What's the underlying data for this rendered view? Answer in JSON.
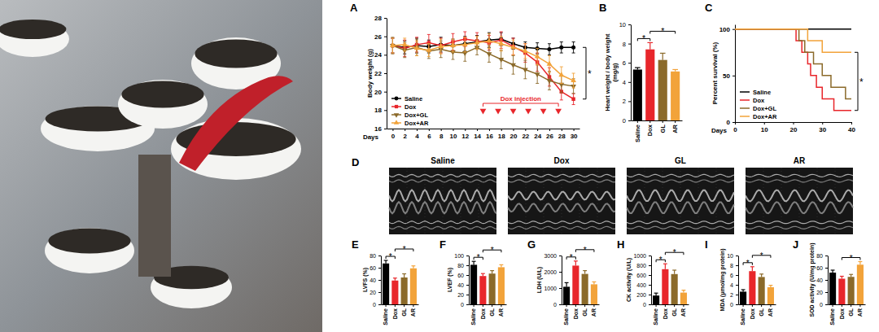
{
  "chart_data": [
    {
      "type": "line",
      "title": "A",
      "x_label": "Days",
      "y_label": "Body weight (g)",
      "x": [
        0,
        2,
        4,
        6,
        8,
        10,
        12,
        14,
        16,
        18,
        20,
        22,
        24,
        26,
        28,
        30
      ],
      "xlim": [
        -1,
        31
      ],
      "xticks": [
        0,
        2,
        4,
        6,
        8,
        10,
        12,
        14,
        16,
        18,
        20,
        22,
        24,
        26,
        28,
        30
      ],
      "ylim": [
        16,
        28
      ],
      "yticks": [
        16,
        18,
        20,
        22,
        24,
        26,
        28
      ],
      "legend": "lower left",
      "series": [
        {
          "name": "Saline",
          "color": "#000000",
          "marker": "circle",
          "values": [
            25.0,
            24.8,
            25.0,
            24.9,
            25.1,
            25.0,
            25.2,
            25.4,
            25.6,
            25.7,
            25.2,
            24.8,
            24.7,
            24.6,
            24.8,
            24.8
          ],
          "errors": [
            0.8,
            0.7,
            0.8,
            0.7,
            0.8,
            0.7,
            0.8,
            0.7,
            0.8,
            0.7,
            0.6,
            0.6,
            0.6,
            0.6,
            0.6,
            0.6
          ]
        },
        {
          "name": "Dox",
          "color": "#e8262b",
          "marker": "square",
          "values": [
            25.0,
            24.7,
            25.1,
            25.3,
            25.0,
            25.4,
            25.7,
            25.5,
            25.3,
            25.6,
            24.9,
            24.2,
            23.2,
            21.6,
            20.0,
            19.2
          ],
          "errors": [
            0.8,
            0.9,
            0.8,
            0.9,
            0.8,
            0.9,
            0.8,
            0.9,
            0.8,
            0.9,
            0.9,
            1.0,
            1.0,
            1.0,
            0.9,
            0.6
          ]
        },
        {
          "name": "Dox+GL",
          "color": "#8b6a2a",
          "marker": "triangle-down",
          "values": [
            25.0,
            24.5,
            24.8,
            24.4,
            24.6,
            24.3,
            24.2,
            24.8,
            24.1,
            23.5,
            22.9,
            22.4,
            21.9,
            21.2,
            20.8,
            20.6
          ],
          "errors": [
            0.9,
            0.8,
            0.9,
            0.8,
            0.9,
            0.8,
            0.9,
            0.8,
            0.9,
            1.0,
            1.0,
            1.0,
            1.0,
            1.0,
            0.9,
            0.8
          ]
        },
        {
          "name": "Dox+AR",
          "color": "#f2a33a",
          "marker": "triangle-up",
          "values": [
            25.0,
            25.1,
            24.7,
            24.5,
            24.9,
            25.0,
            25.1,
            25.3,
            25.5,
            25.2,
            24.8,
            24.4,
            23.8,
            23.0,
            21.8,
            21.2
          ],
          "errors": [
            0.8,
            0.7,
            0.8,
            0.7,
            0.8,
            0.7,
            0.8,
            0.7,
            0.8,
            0.8,
            0.8,
            0.8,
            0.9,
            0.9,
            0.9,
            0.8
          ]
        }
      ],
      "annotation": {
        "text": "Dox injection",
        "x": [
          15,
          17.5,
          20,
          22.5,
          25,
          27.5
        ]
      },
      "significance": [
        {
          "pair": [
            "Saline",
            "Dox"
          ],
          "label": "*"
        }
      ]
    },
    {
      "type": "bar",
      "title": "B",
      "y_label": "Heart weight / body weight (mg/g)",
      "categories": [
        "Saline",
        "Dox",
        "GL",
        "AR"
      ],
      "values": [
        5.3,
        7.4,
        6.3,
        5.1
      ],
      "errors": [
        0.2,
        0.7,
        0.7,
        0.2
      ],
      "colors": [
        "#000000",
        "#e8262b",
        "#8b6a2a",
        "#f2a33a"
      ],
      "ylim": [
        0,
        10
      ],
      "yticks": [
        0,
        2,
        4,
        6,
        8,
        10
      ],
      "significance": [
        {
          "pair": [
            "Saline",
            "Dox"
          ],
          "label": "*"
        },
        {
          "pair": [
            "Dox",
            "AR"
          ],
          "label": "*"
        }
      ]
    },
    {
      "type": "line",
      "title": "C",
      "x_label": "Days",
      "y_label": "Percent survival (%)",
      "line_style": "step",
      "legend": "lower left",
      "xlim": [
        0,
        40
      ],
      "xticks": [
        0,
        10,
        20,
        30,
        40
      ],
      "ylim": [
        0,
        105
      ],
      "yticks": [
        0,
        50,
        100
      ],
      "series": [
        {
          "name": "Saline",
          "color": "#000000",
          "x": [
            0,
            40
          ],
          "values": [
            100,
            100
          ]
        },
        {
          "name": "Dox",
          "color": "#e8262b",
          "x": [
            0,
            21,
            23,
            25,
            26,
            28,
            30,
            34,
            40
          ],
          "values": [
            100,
            87.5,
            75,
            62.5,
            50,
            37.5,
            25,
            12.5,
            12.5
          ]
        },
        {
          "name": "Dox+GL",
          "color": "#8b6a2a",
          "x": [
            0,
            22,
            24,
            27,
            30,
            33,
            38,
            40
          ],
          "values": [
            100,
            87.5,
            75,
            62.5,
            50,
            37.5,
            25,
            25
          ]
        },
        {
          "name": "Dox+AR",
          "color": "#f2a33a",
          "x": [
            0,
            25,
            30,
            40
          ],
          "values": [
            100,
            87.5,
            75,
            75
          ]
        }
      ],
      "significance": [
        {
          "pair": [
            "Dox+AR",
            "Dox"
          ],
          "label": "*"
        }
      ]
    },
    {
      "type": "bar",
      "title": "E",
      "y_label": "LVFS (%)",
      "categories": [
        "Saline",
        "Dox",
        "GL",
        "AR"
      ],
      "values": [
        67,
        39,
        44,
        59
      ],
      "errors": [
        5,
        4,
        6,
        4
      ],
      "colors": [
        "#000000",
        "#e8262b",
        "#8b6a2a",
        "#f2a33a"
      ],
      "ylim": [
        0,
        80
      ],
      "yticks": [
        0,
        20,
        40,
        60,
        80
      ],
      "significance": [
        {
          "pair": [
            "Saline",
            "Dox"
          ],
          "label": "*"
        },
        {
          "pair": [
            "Dox",
            "AR"
          ],
          "label": "*"
        }
      ]
    },
    {
      "type": "bar",
      "title": "F",
      "y_label": "LVEF (%)",
      "categories": [
        "Saline",
        "Dox",
        "GL",
        "AR"
      ],
      "values": [
        81,
        58,
        63,
        76
      ],
      "errors": [
        7,
        5,
        6,
        5
      ],
      "colors": [
        "#000000",
        "#e8262b",
        "#8b6a2a",
        "#f2a33a"
      ],
      "ylim": [
        0,
        100
      ],
      "yticks": [
        0,
        20,
        40,
        60,
        80,
        100
      ],
      "significance": [
        {
          "pair": [
            "Saline",
            "Dox"
          ],
          "label": "*"
        },
        {
          "pair": [
            "Dox",
            "AR"
          ],
          "label": "*"
        }
      ]
    },
    {
      "type": "bar",
      "title": "G",
      "y_label": "LDH (U/L)",
      "categories": [
        "Saline",
        "Dox",
        "GL",
        "AR"
      ],
      "values": [
        1080,
        2380,
        1870,
        1230
      ],
      "errors": [
        250,
        280,
        200,
        150
      ],
      "colors": [
        "#000000",
        "#e8262b",
        "#8b6a2a",
        "#f2a33a"
      ],
      "ylim": [
        0,
        3000
      ],
      "yticks": [
        0,
        1000,
        2000,
        3000
      ],
      "significance": [
        {
          "pair": [
            "Saline",
            "Dox"
          ],
          "label": "*"
        },
        {
          "pair": [
            "Dox",
            "AR"
          ],
          "label": "*"
        }
      ]
    },
    {
      "type": "bar",
      "title": "H",
      "y_label": "CK activity (U/L)",
      "categories": [
        "Saline",
        "Dox",
        "GL",
        "AR"
      ],
      "values": [
        180,
        720,
        620,
        240
      ],
      "errors": [
        50,
        110,
        80,
        50
      ],
      "colors": [
        "#000000",
        "#e8262b",
        "#8b6a2a",
        "#f2a33a"
      ],
      "ylim": [
        0,
        1000
      ],
      "yticks": [
        0,
        200,
        400,
        600,
        800,
        1000
      ],
      "significance": [
        {
          "pair": [
            "Saline",
            "Dox"
          ],
          "label": "*"
        },
        {
          "pair": [
            "Dox",
            "AR"
          ],
          "label": "*"
        }
      ]
    },
    {
      "type": "bar",
      "title": "I",
      "y_label": "MDA (μmol/mg protein)",
      "categories": [
        "Saline",
        "Dox",
        "GL",
        "AR"
      ],
      "values": [
        2.6,
        6.8,
        5.6,
        3.5
      ],
      "errors": [
        0.4,
        0.9,
        0.6,
        0.4
      ],
      "colors": [
        "#000000",
        "#e8262b",
        "#8b6a2a",
        "#f2a33a"
      ],
      "ylim": [
        0,
        10
      ],
      "yticks": [
        0,
        2,
        4,
        6,
        8,
        10
      ],
      "significance": [
        {
          "pair": [
            "Saline",
            "Dox"
          ],
          "label": "*"
        },
        {
          "pair": [
            "Dox",
            "AR"
          ],
          "label": "*"
        }
      ]
    },
    {
      "type": "bar",
      "title": "J",
      "y_label": "SOD activity (U/mg protein)",
      "categories": [
        "Saline",
        "Dox",
        "GL",
        "AR"
      ],
      "values": [
        52,
        42,
        45,
        65
      ],
      "errors": [
        4,
        4,
        4,
        5
      ],
      "colors": [
        "#000000",
        "#e8262b",
        "#8b6a2a",
        "#f2a33a"
      ],
      "ylim": [
        0,
        80
      ],
      "yticks": [
        0,
        20,
        40,
        60,
        80
      ],
      "significance": [
        {
          "pair": [
            "Dox",
            "AR"
          ],
          "label": "*"
        }
      ]
    }
  ],
  "echo": {
    "title": "D",
    "labels": [
      "Saline",
      "Dox",
      "GL",
      "AR"
    ]
  }
}
